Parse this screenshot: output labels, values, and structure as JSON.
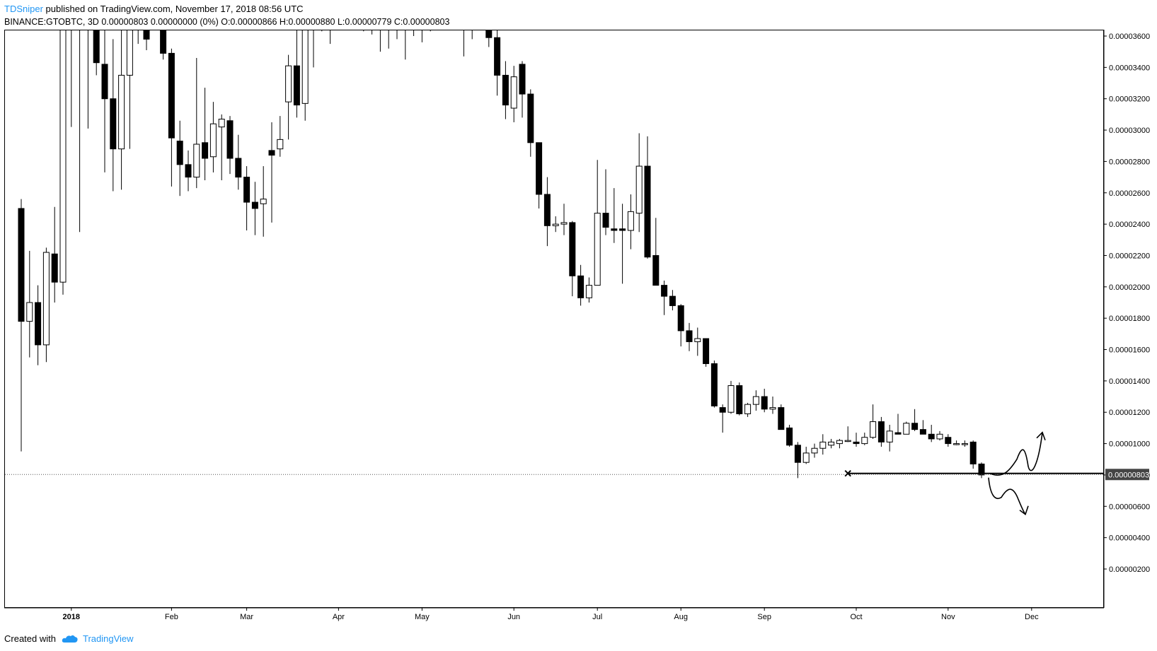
{
  "header": {
    "author": "TDSniper",
    "published": "published on TradingView.com, November 17, 2018 08:56 UTC",
    "symbol_line": "BINANCE:GTOBTC, 3D",
    "price_change": "0.00000803 0.00000000 (0%)",
    "ohlc": "O:0.00000866 H:0.00000880 L:0.00000779 C:0.00000803"
  },
  "footer": {
    "created_with": "Created with",
    "brand": "TradingView"
  },
  "chart_data": {
    "type": "candlestick",
    "symbol": "BINANCE:GTOBTC",
    "interval": "3D",
    "y_unit": "BTC",
    "ylim": [
      1e-06,
      3.65e-05
    ],
    "y_ticks": [
      "0.00003600",
      "0.00003400",
      "0.00003200",
      "0.00003000",
      "0.00002800",
      "0.00002600",
      "0.00002400",
      "0.00002200",
      "0.00002000",
      "0.00001800",
      "0.00001600",
      "0.00001400",
      "0.00001200",
      "0.00001000",
      "0.00000800",
      "0.00000600",
      "0.00000400",
      "0.00000200"
    ],
    "y_tick_values": [
      3.6e-05,
      3.4e-05,
      3.2e-05,
      3e-05,
      2.8e-05,
      2.6e-05,
      2.4e-05,
      2.2e-05,
      2e-05,
      1.8e-05,
      1.6e-05,
      1.4e-05,
      1.2e-05,
      1e-05,
      8e-06,
      6e-06,
      4e-06,
      2e-06
    ],
    "x_ticks": [
      "2018",
      "Feb",
      "Mar",
      "Apr",
      "May",
      "Jun",
      "Jul",
      "Aug",
      "Sep",
      "Oct",
      "Nov",
      "Dec"
    ],
    "x_tick_bar_index": [
      6,
      18,
      27,
      38,
      48,
      59,
      69,
      79,
      89,
      100,
      111,
      121
    ],
    "current_price": "0.00000803",
    "current_price_value": 8.03e-06,
    "support_level": 8.1e-06,
    "candles": [
      {
        "o": 2.5e-05,
        "h": 2.56e-05,
        "l": 9.5e-06,
        "c": 1.78e-05
      },
      {
        "o": 1.78e-05,
        "h": 2.23e-05,
        "l": 1.55e-05,
        "c": 1.9e-05
      },
      {
        "o": 1.9e-05,
        "h": 2.01e-05,
        "l": 1.5e-05,
        "c": 1.63e-05
      },
      {
        "o": 1.63e-05,
        "h": 2.25e-05,
        "l": 1.52e-05,
        "c": 2.22e-05
      },
      {
        "o": 2.21e-05,
        "h": 2.51e-05,
        "l": 1.9e-05,
        "c": 2.03e-05
      },
      {
        "o": 2.03e-05,
        "h": 3.71e-05,
        "l": 1.95e-05,
        "c": 3.69e-05
      },
      {
        "o": 3.69e-05,
        "h": 3.71e-05,
        "l": 3.02e-05,
        "c": 3.65e-05
      },
      {
        "o": 3.69e-05,
        "h": 3.71e-05,
        "l": 2.35e-05,
        "c": 3.68e-05
      },
      {
        "o": 3.68e-05,
        "h": 3.71e-05,
        "l": 3.01e-05,
        "c": 3.67e-05
      },
      {
        "o": 3.69e-05,
        "h": 3.71e-05,
        "l": 3.35e-05,
        "c": 3.43e-05
      },
      {
        "o": 3.42e-05,
        "h": 3.71e-05,
        "l": 2.73e-05,
        "c": 3.2e-05
      },
      {
        "o": 3.2e-05,
        "h": 3.58e-05,
        "l": 2.61e-05,
        "c": 2.88e-05
      },
      {
        "o": 2.88e-05,
        "h": 3.71e-05,
        "l": 2.62e-05,
        "c": 3.35e-05
      },
      {
        "o": 3.35e-05,
        "h": 3.71e-05,
        "l": 2.88e-05,
        "c": 3.69e-05
      },
      {
        "o": 3.69e-05,
        "h": 3.7e-05,
        "l": 3.55e-05,
        "c": 3.65e-05
      },
      {
        "o": 3.69e-05,
        "h": 3.7e-05,
        "l": 3.51e-05,
        "c": 3.58e-05
      },
      {
        "o": 3.69e-05,
        "h": 3.7e-05,
        "l": 3.65e-05,
        "c": 3.68e-05
      },
      {
        "o": 3.69e-05,
        "h": 3.7e-05,
        "l": 3.45e-05,
        "c": 3.49e-05
      },
      {
        "o": 3.49e-05,
        "h": 3.52e-05,
        "l": 2.64e-05,
        "c": 2.95e-05
      },
      {
        "o": 2.93e-05,
        "h": 3.06e-05,
        "l": 2.58e-05,
        "c": 2.78e-05
      },
      {
        "o": 2.78e-05,
        "h": 2.87e-05,
        "l": 2.61e-05,
        "c": 2.7e-05
      },
      {
        "o": 2.7e-05,
        "h": 3.46e-05,
        "l": 2.63e-05,
        "c": 2.91e-05
      },
      {
        "o": 2.92e-05,
        "h": 3.27e-05,
        "l": 2.68e-05,
        "c": 2.82e-05
      },
      {
        "o": 2.83e-05,
        "h": 3.18e-05,
        "l": 2.73e-05,
        "c": 3.04e-05
      },
      {
        "o": 3.02e-05,
        "h": 3.1e-05,
        "l": 2.68e-05,
        "c": 3.07e-05
      },
      {
        "o": 3.06e-05,
        "h": 3.09e-05,
        "l": 2.72e-05,
        "c": 2.82e-05
      },
      {
        "o": 2.82e-05,
        "h": 2.97e-05,
        "l": 2.62e-05,
        "c": 2.7e-05
      },
      {
        "o": 2.7e-05,
        "h": 2.77e-05,
        "l": 2.36e-05,
        "c": 2.54e-05
      },
      {
        "o": 2.54e-05,
        "h": 2.67e-05,
        "l": 2.33e-05,
        "c": 2.5e-05
      },
      {
        "o": 2.53e-05,
        "h": 2.77e-05,
        "l": 2.32e-05,
        "c": 2.56e-05
      },
      {
        "o": 2.87e-05,
        "h": 3.05e-05,
        "l": 2.41e-05,
        "c": 2.84e-05
      },
      {
        "o": 2.88e-05,
        "h": 3.09e-05,
        "l": 2.83e-05,
        "c": 2.94e-05
      },
      {
        "o": 3.18e-05,
        "h": 3.48e-05,
        "l": 2.94e-05,
        "c": 3.41e-05
      },
      {
        "o": 3.41e-05,
        "h": 3.71e-05,
        "l": 3.08e-05,
        "c": 3.16e-05
      },
      {
        "o": 3.17e-05,
        "h": 3.71e-05,
        "l": 3.06e-05,
        "c": 3.69e-05
      },
      {
        "o": 3.69e-05,
        "h": 3.71e-05,
        "l": 3.4e-05,
        "c": 3.7e-05
      },
      {
        "o": 3.69e-05,
        "h": 3.71e-05,
        "l": 3.63e-05,
        "c": 3.7e-05
      },
      {
        "o": 3.69e-05,
        "h": 3.71e-05,
        "l": 3.55e-05,
        "c": 3.69e-05
      },
      {
        "o": 3.69e-05,
        "h": 3.71e-05,
        "l": 3.66e-05,
        "c": 3.69e-05
      },
      {
        "o": 3.69e-05,
        "h": 3.71e-05,
        "l": 3.65e-05,
        "c": 3.68e-05
      },
      {
        "o": 3.69e-05,
        "h": 3.7e-05,
        "l": 3.65e-05,
        "c": 3.68e-05
      },
      {
        "o": 3.69e-05,
        "h": 3.7e-05,
        "l": 3.63e-05,
        "c": 3.67e-05
      },
      {
        "o": 3.69e-05,
        "h": 3.7e-05,
        "l": 3.61e-05,
        "c": 3.64e-05
      },
      {
        "o": 3.69e-05,
        "h": 3.7e-05,
        "l": 3.5e-05,
        "c": 3.65e-05
      },
      {
        "o": 3.69e-05,
        "h": 3.7e-05,
        "l": 3.52e-05,
        "c": 3.68e-05
      },
      {
        "o": 3.69e-05,
        "h": 3.7e-05,
        "l": 3.58e-05,
        "c": 3.68e-05
      },
      {
        "o": 3.69e-05,
        "h": 3.71e-05,
        "l": 3.45e-05,
        "c": 3.68e-05
      },
      {
        "o": 3.69e-05,
        "h": 3.71e-05,
        "l": 3.6e-05,
        "c": 3.68e-05
      },
      {
        "o": 3.69e-05,
        "h": 3.7e-05,
        "l": 3.56e-05,
        "c": 3.69e-05
      },
      {
        "o": 3.69e-05,
        "h": 3.7e-05,
        "l": 3.63e-05,
        "c": 3.69e-05
      },
      {
        "o": 3.69e-05,
        "h": 3.7e-05,
        "l": 3.66e-05,
        "c": 3.68e-05
      },
      {
        "o": 3.69e-05,
        "h": 3.7e-05,
        "l": 3.64e-05,
        "c": 3.68e-05
      },
      {
        "o": 3.69e-05,
        "h": 3.7e-05,
        "l": 3.66e-05,
        "c": 3.68e-05
      },
      {
        "o": 3.69e-05,
        "h": 3.71e-05,
        "l": 3.47e-05,
        "c": 3.65e-05
      },
      {
        "o": 3.64e-05,
        "h": 3.7e-05,
        "l": 3.58e-05,
        "c": 3.68e-05
      },
      {
        "o": 3.68e-05,
        "h": 3.7e-05,
        "l": 3.66e-05,
        "c": 3.67e-05
      },
      {
        "o": 3.69e-05,
        "h": 3.7e-05,
        "l": 3.53e-05,
        "c": 3.59e-05
      },
      {
        "o": 3.59e-05,
        "h": 3.65e-05,
        "l": 3.22e-05,
        "c": 3.35e-05
      },
      {
        "o": 3.35e-05,
        "h": 3.44e-05,
        "l": 3.07e-05,
        "c": 3.16e-05
      },
      {
        "o": 3.14e-05,
        "h": 3.41e-05,
        "l": 3.05e-05,
        "c": 3.34e-05
      },
      {
        "o": 3.42e-05,
        "h": 3.44e-05,
        "l": 3.08e-05,
        "c": 3.23e-05
      },
      {
        "o": 3.23e-05,
        "h": 3.26e-05,
        "l": 2.83e-05,
        "c": 2.92e-05
      },
      {
        "o": 2.92e-05,
        "h": 2.92e-05,
        "l": 2.5e-05,
        "c": 2.59e-05
      },
      {
        "o": 2.59e-05,
        "h": 2.7e-05,
        "l": 2.26e-05,
        "c": 2.39e-05
      },
      {
        "o": 2.39e-05,
        "h": 2.45e-05,
        "l": 2.35e-05,
        "c": 2.4e-05
      },
      {
        "o": 2.4e-05,
        "h": 2.53e-05,
        "l": 2.33e-05,
        "c": 2.41e-05
      },
      {
        "o": 2.41e-05,
        "h": 2.42e-05,
        "l": 1.94e-05,
        "c": 2.07e-05
      },
      {
        "o": 2.07e-05,
        "h": 2.14e-05,
        "l": 1.88e-05,
        "c": 1.93e-05
      },
      {
        "o": 1.93e-05,
        "h": 2.06e-05,
        "l": 1.9e-05,
        "c": 2.01e-05
      },
      {
        "o": 2.01e-05,
        "h": 2.81e-05,
        "l": 2.01e-05,
        "c": 2.47e-05
      },
      {
        "o": 2.47e-05,
        "h": 2.75e-05,
        "l": 2.33e-05,
        "c": 2.38e-05
      },
      {
        "o": 2.37e-05,
        "h": 2.63e-05,
        "l": 2.28e-05,
        "c": 2.36e-05
      },
      {
        "o": 2.37e-05,
        "h": 2.53e-05,
        "l": 2.02e-05,
        "c": 2.36e-05
      },
      {
        "o": 2.36e-05,
        "h": 2.59e-05,
        "l": 2.24e-05,
        "c": 2.48e-05
      },
      {
        "o": 2.47e-05,
        "h": 2.98e-05,
        "l": 2.35e-05,
        "c": 2.77e-05
      },
      {
        "o": 2.77e-05,
        "h": 2.96e-05,
        "l": 2.18e-05,
        "c": 2.19e-05
      },
      {
        "o": 2.2e-05,
        "h": 2.44e-05,
        "l": 2.01e-05,
        "c": 2.01e-05
      },
      {
        "o": 2.01e-05,
        "h": 2.04e-05,
        "l": 1.82e-05,
        "c": 1.94e-05
      },
      {
        "o": 1.94e-05,
        "h": 1.98e-05,
        "l": 1.85e-05,
        "c": 1.88e-05
      },
      {
        "o": 1.88e-05,
        "h": 1.89e-05,
        "l": 1.62e-05,
        "c": 1.72e-05
      },
      {
        "o": 1.72e-05,
        "h": 1.77e-05,
        "l": 1.59e-05,
        "c": 1.65e-05
      },
      {
        "o": 1.65e-05,
        "h": 1.74e-05,
        "l": 1.56e-05,
        "c": 1.67e-05
      },
      {
        "o": 1.67e-05,
        "h": 1.67e-05,
        "l": 1.49e-05,
        "c": 1.51e-05
      },
      {
        "o": 1.51e-05,
        "h": 1.53e-05,
        "l": 1.23e-05,
        "c": 1.24e-05
      },
      {
        "o": 1.23e-05,
        "h": 1.25e-05,
        "l": 1.07e-05,
        "c": 1.2e-05
      },
      {
        "o": 1.2e-05,
        "h": 1.4e-05,
        "l": 1.19e-05,
        "c": 1.37e-05
      },
      {
        "o": 1.37e-05,
        "h": 1.39e-05,
        "l": 1.18e-05,
        "c": 1.19e-05
      },
      {
        "o": 1.19e-05,
        "h": 1.26e-05,
        "l": 1.17e-05,
        "c": 1.25e-05
      },
      {
        "o": 1.25e-05,
        "h": 1.34e-05,
        "l": 1.21e-05,
        "c": 1.3e-05
      },
      {
        "o": 1.3e-05,
        "h": 1.35e-05,
        "l": 1.2e-05,
        "c": 1.22e-05
      },
      {
        "o": 1.22e-05,
        "h": 1.3e-05,
        "l": 1.19e-05,
        "c": 1.23e-05
      },
      {
        "o": 1.23e-05,
        "h": 1.25e-05,
        "l": 1.1e-05,
        "c": 1.09e-05
      },
      {
        "o": 1.1e-05,
        "h": 1.12e-05,
        "l": 9.8e-06,
        "c": 9.9e-06
      },
      {
        "o": 9.9e-06,
        "h": 1.01e-05,
        "l": 7.8e-06,
        "c": 8.8e-06
      },
      {
        "o": 8.8e-06,
        "h": 9.8e-06,
        "l": 8.7e-06,
        "c": 9.4e-06
      },
      {
        "o": 9.4e-06,
        "h": 1e-05,
        "l": 9.1e-06,
        "c": 9.7e-06
      },
      {
        "o": 9.7e-06,
        "h": 1.06e-05,
        "l": 9.3e-06,
        "c": 1.01e-05
      },
      {
        "o": 9.9e-06,
        "h": 1.03e-05,
        "l": 9.7e-06,
        "c": 1.01e-05
      },
      {
        "o": 1e-05,
        "h": 1.03e-05,
        "l": 9.7e-06,
        "c": 1.02e-05
      },
      {
        "o": 1.02e-05,
        "h": 1.11e-05,
        "l": 1.01e-05,
        "c": 1.02e-05
      },
      {
        "o": 1.01e-05,
        "h": 1.07e-05,
        "l": 9.8e-06,
        "c": 1e-05
      },
      {
        "o": 1e-05,
        "h": 1.07e-05,
        "l": 9.9e-06,
        "c": 1.04e-05
      },
      {
        "o": 1.04e-05,
        "h": 1.25e-05,
        "l": 1.03e-05,
        "c": 1.14e-05
      },
      {
        "o": 1.14e-05,
        "h": 1.17e-05,
        "l": 9.8e-06,
        "c": 1.01e-05
      },
      {
        "o": 1.01e-05,
        "h": 1.12e-05,
        "l": 9.5e-06,
        "c": 1.08e-05
      },
      {
        "o": 1.07e-05,
        "h": 1.19e-05,
        "l": 1.07e-05,
        "c": 1.06e-05
      },
      {
        "o": 1.06e-05,
        "h": 1.14e-05,
        "l": 1.06e-05,
        "c": 1.13e-05
      },
      {
        "o": 1.13e-05,
        "h": 1.22e-05,
        "l": 1.08e-05,
        "c": 1.09e-05
      },
      {
        "o": 1.09e-05,
        "h": 1.15e-05,
        "l": 1.08e-05,
        "c": 1.06e-05
      },
      {
        "o": 1.06e-05,
        "h": 1.12e-05,
        "l": 1.01e-05,
        "c": 1.03e-05
      },
      {
        "o": 1.03e-05,
        "h": 1.08e-05,
        "l": 1.02e-05,
        "c": 1.06e-05
      },
      {
        "o": 1.04e-05,
        "h": 1.06e-05,
        "l": 9.8e-06,
        "c": 1e-05
      },
      {
        "o": 1e-05,
        "h": 1.02e-05,
        "l": 9.9e-06,
        "c": 1e-05
      },
      {
        "o": 1e-05,
        "h": 1.02e-05,
        "l": 9.8e-06,
        "c": 1e-05
      },
      {
        "o": 1.01e-05,
        "h": 1.02e-05,
        "l": 8.4e-06,
        "c": 8.7e-06
      },
      {
        "o": 8.7e-06,
        "h": 8.8e-06,
        "l": 7.8e-06,
        "c": 8e-06
      }
    ],
    "annotations": [
      {
        "kind": "cross-marker",
        "bar_index": 99,
        "value": 8.1e-06
      },
      {
        "kind": "horizontal-line",
        "from_bar_index": 99,
        "value": 8.1e-06
      },
      {
        "kind": "arrow-up-scenario",
        "direction": "up"
      },
      {
        "kind": "arrow-down-scenario",
        "direction": "down"
      }
    ]
  }
}
